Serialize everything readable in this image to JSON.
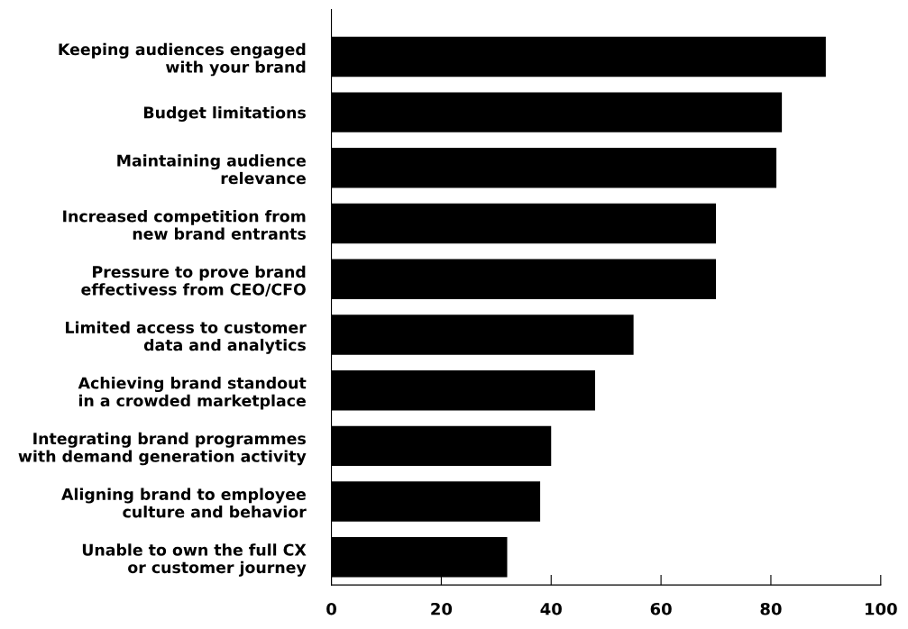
{
  "chart_data": {
    "type": "bar",
    "orientation": "horizontal",
    "categories": [
      "Keeping audiences engaged\nwith your brand",
      "Budget limitations",
      "Maintaining audience\nrelevance",
      "Increased competition from\nnew brand entrants",
      "Pressure to prove brand\neffectivess from CEO/CFO",
      "Limited access to customer\ndata and analytics",
      "Achieving brand standout\nin a crowded marketplace",
      "Integrating brand programmes\nwith demand generation activity",
      "Aligning brand to employee\nculture and behavior",
      "Unable to own the full CX\nor customer journey"
    ],
    "values": [
      90,
      82,
      81,
      70,
      70,
      55,
      48,
      40,
      38,
      32
    ],
    "color": "#000000",
    "xlim": [
      0,
      100
    ],
    "xticks": [
      0,
      20,
      40,
      60,
      80,
      100
    ],
    "grid": false
  }
}
